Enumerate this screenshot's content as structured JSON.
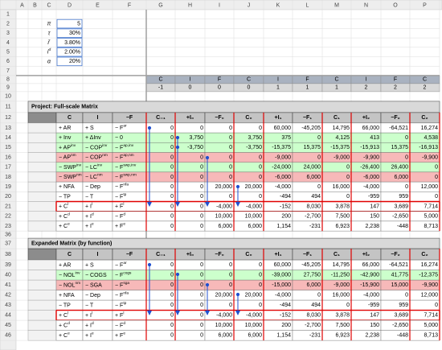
{
  "sheet": {
    "columns": [
      "A",
      "B",
      "C",
      "D",
      "E",
      "F",
      "G",
      "H",
      "I",
      "J",
      "K",
      "L",
      "M",
      "N",
      "O",
      "P"
    ],
    "rows": [
      1,
      2,
      3,
      4,
      5,
      6,
      7,
      8,
      9,
      10,
      11,
      12,
      13,
      14,
      15,
      16,
      17,
      18,
      19,
      20,
      21,
      22,
      23,
      36,
      37,
      38,
      39,
      40,
      41,
      42,
      43,
      44,
      45,
      46
    ]
  },
  "parameters": [
    {
      "label": [
        "π"
      ],
      "value": "5"
    },
    {
      "label": [
        "τ"
      ],
      "value": "30%"
    },
    {
      "label": [
        "i",
        "r"
      ],
      "value": "3.80%"
    },
    {
      "label": [
        "i",
        "d"
      ],
      "value": "2.00%"
    },
    {
      "label": [
        "α"
      ],
      "value": "20%"
    }
  ],
  "periods": {
    "types": [
      "C",
      "I",
      "F",
      "C",
      "I",
      "F",
      "C",
      "I",
      "F",
      "C"
    ],
    "indices": [
      -1,
      0,
      0,
      0,
      1,
      1,
      1,
      2,
      2,
      2
    ]
  },
  "sections": [
    {
      "title": "Project: Full-scale Matrix",
      "header": [
        "C",
        "I",
        "−F",
        "C₋₁",
        "+I₀",
        "−F₀",
        "C₀",
        "+I₁",
        "−F₁",
        "C₁",
        "+I₂",
        "−F₂",
        "C₂"
      ],
      "rows": [
        {
          "labels": [
            [
              "+ AR"
            ],
            [
              "+ S"
            ],
            [
              "− F",
              "ar"
            ]
          ],
          "values": [
            "0",
            "0",
            "0",
            "0",
            "60,000",
            "-45,205",
            "14,795",
            "66,000",
            "-64,521",
            "16,274"
          ]
        },
        {
          "labels": [
            [
              "+ Inv"
            ],
            [
              "+ ΔInv"
            ],
            [
              "− 0"
            ]
          ],
          "values": [
            "0",
            "3,750",
            "0",
            "3,750",
            "375",
            "0",
            "4,125",
            "413",
            "0",
            "4,538"
          ],
          "fill": "#ccffcc"
        },
        {
          "labels": [
            [
              "+ AP",
              "inv"
            ],
            [
              "− COP",
              "inv"
            ],
            [
              "− F",
              "ap,inv"
            ]
          ],
          "values": [
            "0",
            "-3,750",
            "0",
            "-3,750",
            "-15,375",
            "15,375",
            "-15,375",
            "-15,913",
            "15,375",
            "-16,913"
          ],
          "fill": "#ccffcc"
        },
        {
          "labels": [
            [
              "− AP",
              "nm"
            ],
            [
              "− COP",
              "nm"
            ],
            [
              "− F",
              "ap,nm"
            ]
          ],
          "values": [
            "0",
            "0",
            "0",
            "0",
            "-9,000",
            "0",
            "-9,000",
            "-9,900",
            "0",
            "-9,900"
          ],
          "fill": "#f7b9b9"
        },
        {
          "labels": [
            [
              "− SWP",
              "inv"
            ],
            [
              "− LC",
              "inv"
            ],
            [
              "− F",
              "swp,inv"
            ]
          ],
          "values": [
            "0",
            "0",
            "0",
            "0",
            "-24,000",
            "24,000",
            "0",
            "-26,400",
            "26,400",
            "0"
          ],
          "fill": "#ccffcc"
        },
        {
          "labels": [
            [
              "− SWP",
              "nm"
            ],
            [
              "− LC",
              "nm"
            ],
            [
              "− F",
              "swp,nm"
            ]
          ],
          "values": [
            "0",
            "0",
            "0",
            "0",
            "-6,000",
            "6,000",
            "0",
            "-6,000",
            "6,000",
            "0"
          ],
          "fill": "#f7b9b9"
        },
        {
          "labels": [
            [
              "+ NFA"
            ],
            [
              "− Dep"
            ],
            [
              "− F",
              "nfa"
            ]
          ],
          "values": [
            "0",
            "0",
            "20,000",
            "20,000",
            "-4,000",
            "0",
            "16,000",
            "-4,000",
            "0",
            "12,000"
          ]
        },
        {
          "labels": [
            [
              "− TP"
            ],
            [
              "− T"
            ],
            [
              "− F",
              "tp"
            ]
          ],
          "values": [
            "0",
            "0",
            "0",
            "0",
            "-494",
            "494",
            "0",
            "-959",
            "959",
            "0"
          ]
        },
        {
          "labels": [
            [
              "+ C",
              "l"
            ],
            [
              "+ I",
              "l"
            ],
            [
              "+ F",
              "l"
            ]
          ],
          "values": [
            "0",
            "0",
            "-4,000",
            "-4,000",
            "-152",
            "8,030",
            "3,878",
            "147",
            "3,689",
            "7,714"
          ],
          "border": "#e00000"
        },
        {
          "labels": [
            [
              "+ C",
              "d"
            ],
            [
              "+ I",
              "d"
            ],
            [
              "− F",
              "d"
            ]
          ],
          "values": [
            "0",
            "0",
            "10,000",
            "10,000",
            "200",
            "-2,700",
            "7,500",
            "150",
            "-2,650",
            "5,000"
          ]
        },
        {
          "labels": [
            [
              "+ C",
              "e"
            ],
            [
              "+ I",
              "e"
            ],
            [
              "+ F",
              "e"
            ]
          ],
          "values": [
            "0",
            "0",
            "6,000",
            "6,000",
            "1,154",
            "-231",
            "6,923",
            "2,238",
            "-448",
            "8,713"
          ]
        }
      ]
    },
    {
      "title": "Expanded Matrix (by function)",
      "header": [
        "C",
        "I",
        "−F",
        "C₋₁",
        "+I₀",
        "−F₀",
        "C₀",
        "+I₁",
        "−F₁",
        "C₁",
        "+I₂",
        "−F₂",
        "C₂"
      ],
      "rows": [
        {
          "labels": [
            [
              "+ AR"
            ],
            [
              "+ S"
            ],
            [
              "− F",
              "ar"
            ]
          ],
          "values": [
            "0",
            "0",
            "0",
            "0",
            "60,000",
            "-45,205",
            "14,795",
            "66,000",
            "-64,521",
            "16,274"
          ]
        },
        {
          "labels": [
            [
              "− NOL",
              "inv"
            ],
            [
              "− COGS"
            ],
            [
              "− F",
              "cogs"
            ]
          ],
          "values": [
            "0",
            "0",
            "0",
            "0",
            "-39,000",
            "27,750",
            "-11,250",
            "-42,900",
            "41,775",
            "-12,375"
          ],
          "fill": "#ccffcc"
        },
        {
          "labels": [
            [
              "− NOL",
              "nm"
            ],
            [
              "− SGA"
            ],
            [
              "− F",
              "sga"
            ]
          ],
          "values": [
            "0",
            "0",
            "0",
            "0",
            "-15,000",
            "6,000",
            "-9,000",
            "-15,900",
            "15,000",
            "-9,900"
          ],
          "fill": "#f7b9b9"
        },
        {
          "labels": [
            [
              "+ NFA"
            ],
            [
              "− Dep"
            ],
            [
              "− F",
              "nfa"
            ]
          ],
          "values": [
            "0",
            "0",
            "20,000",
            "20,000",
            "-4,000",
            "0",
            "16,000",
            "-4,000",
            "0",
            "12,000"
          ]
        },
        {
          "labels": [
            [
              "− TP"
            ],
            [
              "− T"
            ],
            [
              "− F",
              "tp"
            ]
          ],
          "values": [
            "0",
            "0",
            "0",
            "0",
            "-494",
            "494",
            "0",
            "-959",
            "959",
            "0"
          ]
        },
        {
          "labels": [
            [
              "+ C",
              "l"
            ],
            [
              "+ I",
              "l"
            ],
            [
              "+ F",
              "l"
            ]
          ],
          "values": [
            "0",
            "0",
            "-4,000",
            "-4,000",
            "-152",
            "8,030",
            "3,878",
            "147",
            "3,689",
            "7,714"
          ],
          "border": "#e00000"
        },
        {
          "labels": [
            [
              "+ C",
              "d"
            ],
            [
              "+ I",
              "d"
            ],
            [
              "− F",
              "d"
            ]
          ],
          "values": [
            "0",
            "0",
            "10,000",
            "10,000",
            "200",
            "-2,700",
            "7,500",
            "150",
            "-2,650",
            "5,000"
          ]
        },
        {
          "labels": [
            [
              "+ C",
              "e"
            ],
            [
              "+ I",
              "e"
            ],
            [
              "+ F",
              "e"
            ]
          ],
          "values": [
            "0",
            "0",
            "6,000",
            "6,000",
            "1,154",
            "-231",
            "6,923",
            "2,238",
            "-448",
            "8,713"
          ]
        }
      ]
    }
  ]
}
